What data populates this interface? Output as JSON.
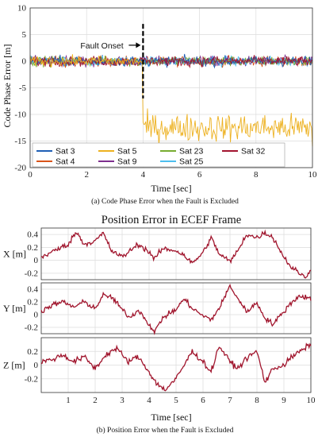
{
  "chart_data": [
    {
      "type": "line",
      "ylabel": "Code Phase Error [m]",
      "xlabel": "Time [sec]",
      "caption": "(a)  Code Phase Error when the Fault is Excluded",
      "xlim": [
        0,
        10
      ],
      "ylim": [
        -20,
        10
      ],
      "xticks": [
        "0",
        "2",
        "4",
        "6",
        "8",
        "10"
      ],
      "yticks": [
        "10",
        "5",
        "0",
        "-5",
        "-10",
        "-15",
        "-20"
      ],
      "grid": true,
      "legend_position": "bottom-left",
      "annotation": {
        "text": "Fault Onset",
        "x": 4
      },
      "fault_line": {
        "x": 4,
        "y_range": [
          -7,
          7
        ]
      },
      "series": [
        {
          "name": "Sat 3",
          "color": "#1f5fb5",
          "mean": 0,
          "noise": 0.8,
          "x": [
            0,
            10
          ]
        },
        {
          "name": "Sat 4",
          "color": "#d95319",
          "mean": 0,
          "noise": 0.8,
          "x": [
            0,
            10
          ]
        },
        {
          "name": "Sat 5",
          "color": "#edb120",
          "mean": 0,
          "noise": 0.8,
          "x": [
            0,
            10
          ],
          "post_fault_mean": -12.5,
          "post_fault_noise": 2.2,
          "post_fault_start": 4,
          "end_value": -16
        },
        {
          "name": "Sat 9",
          "color": "#7e2f8e",
          "mean": 0,
          "noise": 0.8,
          "x": [
            0,
            10
          ]
        },
        {
          "name": "Sat 23",
          "color": "#77ac30",
          "mean": 0,
          "noise": 0.8,
          "x": [
            0,
            10
          ]
        },
        {
          "name": "Sat 25",
          "color": "#4dbeee",
          "mean": 0,
          "noise": 0.8,
          "x": [
            0,
            10
          ]
        },
        {
          "name": "Sat 32",
          "color": "#a2142f",
          "mean": 0,
          "noise": 0.8,
          "x": [
            0,
            10
          ]
        }
      ],
      "legend_order": [
        "Sat 3",
        "Sat 5",
        "Sat 23",
        "Sat 32",
        "Sat 4",
        "Sat 9",
        "Sat 25"
      ]
    },
    {
      "type": "line",
      "title": "Position Error in ECEF Frame",
      "xlabel": "Time [sec]",
      "caption": "(b)  Position Error when the Fault is Excluded",
      "xlim": [
        0,
        10
      ],
      "xticks": [
        "1",
        "2",
        "3",
        "4",
        "5",
        "6",
        "7",
        "8",
        "9",
        "10"
      ],
      "color": "#a0142c",
      "grid": true,
      "subplots": [
        {
          "ylabel": "X [m]",
          "ylim": [
            -0.3,
            0.5
          ],
          "yticks": [
            "0.4",
            "0.2",
            "0",
            "-0.2"
          ],
          "points": [
            [
              0,
              0.05
            ],
            [
              0.5,
              0.15
            ],
            [
              1,
              0.25
            ],
            [
              1.3,
              0.44
            ],
            [
              1.6,
              0.25
            ],
            [
              2,
              0.3
            ],
            [
              2.3,
              0.42
            ],
            [
              2.6,
              0.15
            ],
            [
              3,
              0.05
            ],
            [
              3.3,
              0.15
            ],
            [
              3.6,
              0.25
            ],
            [
              4,
              0.13
            ],
            [
              4.2,
              0.02
            ],
            [
              4.5,
              0.18
            ],
            [
              5,
              0.15
            ],
            [
              5.3,
              0.08
            ],
            [
              5.6,
              -0.05
            ],
            [
              6,
              0.12
            ],
            [
              6.3,
              0.35
            ],
            [
              6.6,
              0.1
            ],
            [
              7,
              -0.02
            ],
            [
              7.3,
              0.15
            ],
            [
              7.6,
              0.4
            ],
            [
              8,
              0.35
            ],
            [
              8.3,
              0.43
            ],
            [
              8.6,
              0.35
            ],
            [
              9,
              0.05
            ],
            [
              9.3,
              -0.12
            ],
            [
              9.6,
              -0.2
            ],
            [
              9.8,
              -0.28
            ],
            [
              10,
              -0.12
            ]
          ]
        },
        {
          "ylabel": "Y [m]",
          "ylim": [
            -0.3,
            0.5
          ],
          "yticks": [
            "0.4",
            "0.2",
            "0",
            "-0.2"
          ],
          "points": [
            [
              0,
              0.05
            ],
            [
              0.4,
              0.15
            ],
            [
              0.8,
              0.2
            ],
            [
              1.2,
              0.12
            ],
            [
              1.6,
              0.2
            ],
            [
              2,
              0.1
            ],
            [
              2.3,
              0.3
            ],
            [
              2.6,
              0.28
            ],
            [
              3,
              0.08
            ],
            [
              3.3,
              -0.05
            ],
            [
              3.6,
              0.08
            ],
            [
              4,
              -0.15
            ],
            [
              4.2,
              -0.28
            ],
            [
              4.5,
              -0.05
            ],
            [
              5,
              0.08
            ],
            [
              5.3,
              0.25
            ],
            [
              5.6,
              0.1
            ],
            [
              6,
              -0.02
            ],
            [
              6.3,
              -0.08
            ],
            [
              6.6,
              0.1
            ],
            [
              7,
              0.45
            ],
            [
              7.3,
              0.25
            ],
            [
              7.6,
              0.05
            ],
            [
              8,
              0.18
            ],
            [
              8.3,
              -0.05
            ],
            [
              8.6,
              -0.15
            ],
            [
              9,
              0.05
            ],
            [
              9.3,
              0.2
            ],
            [
              9.6,
              0.3
            ],
            [
              10,
              0.25
            ]
          ]
        },
        {
          "ylabel": "Z [m]",
          "ylim": [
            -0.4,
            0.4
          ],
          "yticks": [
            "0.2",
            "0",
            "-0.2"
          ],
          "points": [
            [
              0,
              0.05
            ],
            [
              0.4,
              0.08
            ],
            [
              0.8,
              0.15
            ],
            [
              1.2,
              0.05
            ],
            [
              1.6,
              0.12
            ],
            [
              2,
              -0.05
            ],
            [
              2.4,
              0.15
            ],
            [
              2.8,
              0.25
            ],
            [
              3.2,
              0.05
            ],
            [
              3.6,
              0.12
            ],
            [
              4,
              -0.1
            ],
            [
              4.3,
              -0.28
            ],
            [
              4.6,
              -0.36
            ],
            [
              5,
              -0.2
            ],
            [
              5.3,
              0.0
            ],
            [
              5.6,
              0.2
            ],
            [
              6,
              0.05
            ],
            [
              6.3,
              -0.1
            ],
            [
              6.6,
              0.28
            ],
            [
              7,
              0.05
            ],
            [
              7.3,
              -0.05
            ],
            [
              7.6,
              0.1
            ],
            [
              8,
              0.2
            ],
            [
              8.3,
              -0.25
            ],
            [
              8.6,
              -0.05
            ],
            [
              9,
              0.0
            ],
            [
              9.3,
              0.12
            ],
            [
              9.6,
              0.2
            ],
            [
              10,
              0.3
            ]
          ]
        }
      ]
    }
  ]
}
